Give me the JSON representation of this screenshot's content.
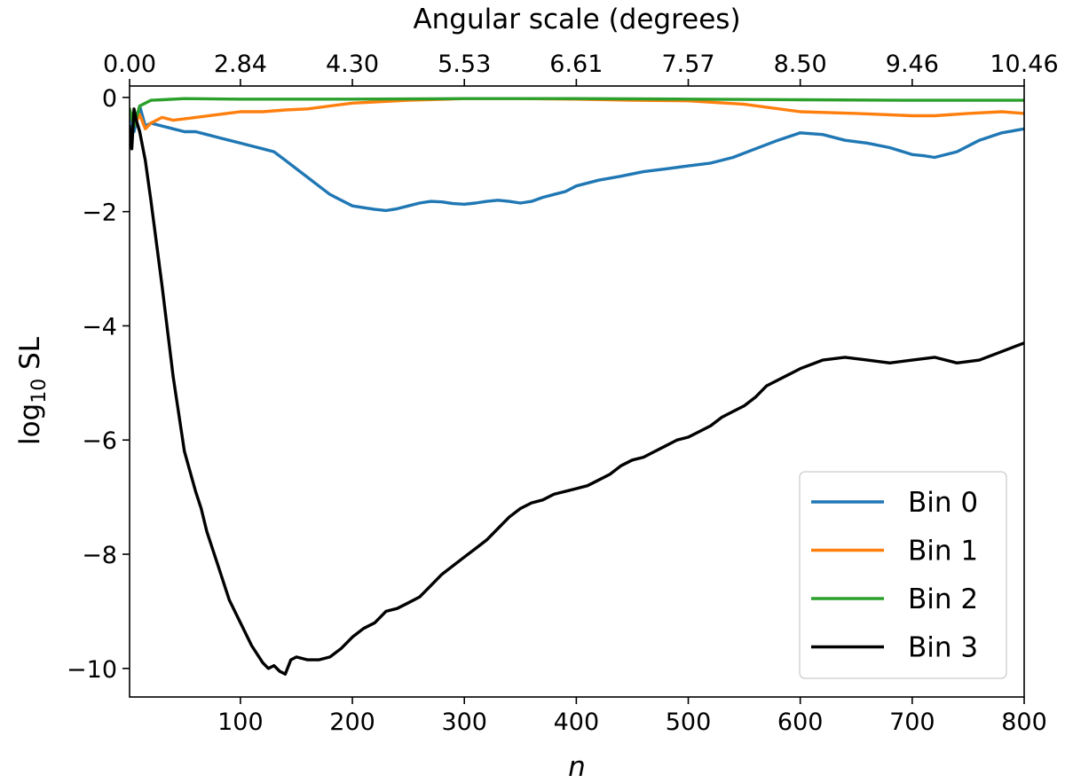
{
  "chart_data": {
    "type": "line",
    "top_xlabel": "Angular scale (degrees)",
    "xlabel": "n",
    "ylabel_base": "log",
    "ylabel_sub": "10",
    "ylabel_rest": " SL",
    "xlim": [
      1,
      800
    ],
    "ylim": [
      -10.5,
      0.2
    ],
    "x_ticks": [
      100,
      200,
      300,
      400,
      500,
      600,
      700,
      800
    ],
    "y_ticks": [
      0,
      -2,
      -4,
      -6,
      -8,
      -10
    ],
    "y_tick_labels": [
      "0",
      "−2",
      "−4",
      "−6",
      "−8",
      "−10"
    ],
    "top_ticks": [
      {
        "n": 1,
        "label": "0.00"
      },
      {
        "n": 100,
        "label": "2.84"
      },
      {
        "n": 200,
        "label": "4.30"
      },
      {
        "n": 300,
        "label": "5.53"
      },
      {
        "n": 400,
        "label": "6.61"
      },
      {
        "n": 500,
        "label": "7.57"
      },
      {
        "n": 600,
        "label": "8.50"
      },
      {
        "n": 700,
        "label": "9.46"
      },
      {
        "n": 800,
        "label": "10.46"
      }
    ],
    "legend_position": "lower-right",
    "series": [
      {
        "name": "Bin 0",
        "color": "#1f77b4",
        "x": [
          1,
          5,
          10,
          15,
          20,
          30,
          40,
          50,
          60,
          70,
          80,
          90,
          100,
          110,
          120,
          130,
          140,
          150,
          160,
          170,
          180,
          190,
          200,
          210,
          220,
          230,
          240,
          250,
          260,
          270,
          280,
          290,
          300,
          310,
          320,
          330,
          340,
          350,
          360,
          370,
          380,
          390,
          400,
          420,
          440,
          460,
          480,
          500,
          520,
          540,
          560,
          580,
          600,
          620,
          640,
          660,
          680,
          700,
          710,
          720,
          740,
          760,
          780,
          800
        ],
        "y": [
          -0.3,
          -0.6,
          -0.15,
          -0.5,
          -0.45,
          -0.5,
          -0.55,
          -0.6,
          -0.6,
          -0.65,
          -0.7,
          -0.75,
          -0.8,
          -0.85,
          -0.9,
          -0.95,
          -1.1,
          -1.25,
          -1.4,
          -1.55,
          -1.7,
          -1.8,
          -1.9,
          -1.93,
          -1.96,
          -1.98,
          -1.95,
          -1.9,
          -1.85,
          -1.82,
          -1.83,
          -1.86,
          -1.87,
          -1.85,
          -1.82,
          -1.8,
          -1.82,
          -1.85,
          -1.82,
          -1.75,
          -1.7,
          -1.65,
          -1.55,
          -1.45,
          -1.38,
          -1.3,
          -1.25,
          -1.2,
          -1.15,
          -1.05,
          -0.9,
          -0.75,
          -0.62,
          -0.65,
          -0.75,
          -0.8,
          -0.88,
          -1.0,
          -1.02,
          -1.05,
          -0.95,
          -0.75,
          -0.62,
          -0.55
        ]
      },
      {
        "name": "Bin 1",
        "color": "#ff7f0e",
        "x": [
          1,
          5,
          10,
          15,
          20,
          30,
          40,
          60,
          80,
          100,
          120,
          140,
          160,
          180,
          200,
          250,
          300,
          350,
          400,
          450,
          500,
          550,
          600,
          650,
          700,
          720,
          750,
          780,
          800
        ],
        "y": [
          -0.2,
          -0.5,
          -0.3,
          -0.55,
          -0.45,
          -0.35,
          -0.4,
          -0.35,
          -0.3,
          -0.25,
          -0.25,
          -0.22,
          -0.2,
          -0.15,
          -0.1,
          -0.05,
          -0.02,
          -0.02,
          -0.03,
          -0.05,
          -0.06,
          -0.12,
          -0.25,
          -0.28,
          -0.32,
          -0.32,
          -0.28,
          -0.25,
          -0.28
        ]
      },
      {
        "name": "Bin 2",
        "color": "#2ca02c",
        "x": [
          1,
          5,
          10,
          15,
          20,
          30,
          50,
          100,
          200,
          300,
          400,
          500,
          600,
          700,
          800
        ],
        "y": [
          -0.2,
          -0.5,
          -0.15,
          -0.1,
          -0.05,
          -0.04,
          -0.02,
          -0.03,
          -0.03,
          -0.02,
          -0.02,
          -0.03,
          -0.04,
          -0.05,
          -0.05
        ]
      },
      {
        "name": "Bin 3",
        "color": "#000000",
        "x": [
          1,
          3,
          5,
          7,
          10,
          15,
          20,
          30,
          40,
          50,
          60,
          65,
          70,
          80,
          90,
          100,
          110,
          120,
          125,
          130,
          135,
          140,
          145,
          150,
          160,
          170,
          180,
          190,
          200,
          210,
          220,
          230,
          240,
          250,
          260,
          270,
          280,
          290,
          300,
          310,
          320,
          330,
          340,
          350,
          360,
          370,
          380,
          390,
          400,
          410,
          420,
          430,
          440,
          450,
          460,
          470,
          480,
          490,
          500,
          510,
          520,
          530,
          540,
          550,
          560,
          570,
          580,
          590,
          600,
          620,
          640,
          660,
          680,
          700,
          720,
          740,
          760,
          780,
          800
        ],
        "y": [
          -0.5,
          -0.9,
          -0.2,
          -0.4,
          -0.6,
          -1.1,
          -1.8,
          -3.3,
          -4.9,
          -6.2,
          -6.9,
          -7.2,
          -7.6,
          -8.2,
          -8.8,
          -9.2,
          -9.6,
          -9.9,
          -10.0,
          -9.95,
          -10.05,
          -10.1,
          -9.85,
          -9.8,
          -9.85,
          -9.85,
          -9.8,
          -9.65,
          -9.45,
          -9.3,
          -9.2,
          -9.0,
          -8.95,
          -8.85,
          -8.75,
          -8.55,
          -8.35,
          -8.2,
          -8.05,
          -7.9,
          -7.75,
          -7.55,
          -7.35,
          -7.2,
          -7.1,
          -7.05,
          -6.95,
          -6.9,
          -6.85,
          -6.8,
          -6.7,
          -6.6,
          -6.45,
          -6.35,
          -6.3,
          -6.2,
          -6.1,
          -6.0,
          -5.95,
          -5.85,
          -5.75,
          -5.6,
          -5.5,
          -5.4,
          -5.25,
          -5.05,
          -4.95,
          -4.85,
          -4.75,
          -4.6,
          -4.55,
          -4.6,
          -4.65,
          -4.6,
          -4.55,
          -4.65,
          -4.6,
          -4.45,
          -4.3
        ]
      }
    ]
  }
}
